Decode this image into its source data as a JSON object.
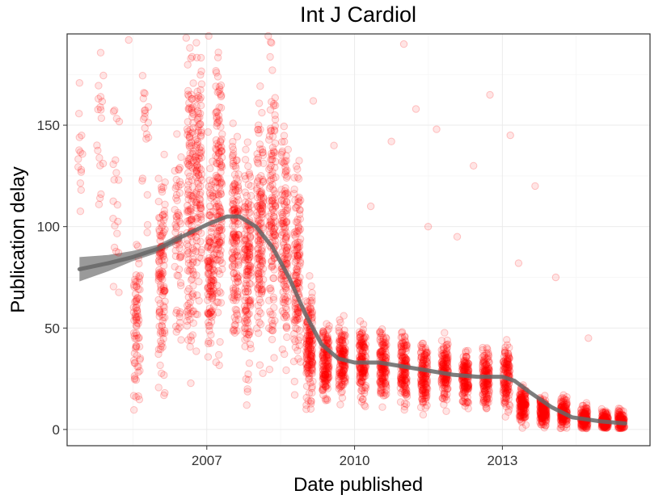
{
  "chart_data": {
    "type": "scatter",
    "title": "Int J Cardiol",
    "xlabel": "Date published",
    "ylabel": "Publication delay",
    "xlim": [
      "2004-03-01",
      "2016-01-01"
    ],
    "ylim": [
      -8,
      195
    ],
    "x_ticks": [
      {
        "date": "2007-01-01",
        "label": "2007"
      },
      {
        "date": "2010-01-01",
        "label": "2010"
      },
      {
        "date": "2013-01-01",
        "label": "2013"
      }
    ],
    "y_ticks": [
      {
        "value": 0,
        "label": "0"
      },
      {
        "value": 50,
        "label": "50"
      },
      {
        "value": 100,
        "label": "100"
      },
      {
        "value": 150,
        "label": "150"
      }
    ],
    "grid": true,
    "point_color": "#ff0000",
    "trend_color": "#666666",
    "band_color": "#888888",
    "point_clusters": [
      {
        "date": "2004-06-01",
        "center": 135,
        "spread": 22,
        "n": 14
      },
      {
        "date": "2004-11-01",
        "center": 140,
        "spread": 35,
        "n": 18
      },
      {
        "date": "2005-03-01",
        "center": 120,
        "spread": 55,
        "n": 20
      },
      {
        "date": "2005-08-01",
        "center": 50,
        "spread": 30,
        "n": 80
      },
      {
        "date": "2005-10-01",
        "center": 140,
        "spread": 45,
        "n": 20
      },
      {
        "date": "2006-02-01",
        "center": 75,
        "spread": 40,
        "n": 120
      },
      {
        "date": "2006-06-01",
        "center": 95,
        "spread": 45,
        "n": 60
      },
      {
        "date": "2006-09-01",
        "center": 110,
        "spread": 60,
        "n": 150
      },
      {
        "date": "2006-11-01",
        "center": 130,
        "spread": 55,
        "n": 120
      },
      {
        "date": "2007-02-01",
        "center": 85,
        "spread": 35,
        "n": 130
      },
      {
        "date": "2007-04-01",
        "center": 115,
        "spread": 55,
        "n": 150
      },
      {
        "date": "2007-08-01",
        "center": 95,
        "spread": 40,
        "n": 150
      },
      {
        "date": "2007-11-01",
        "center": 80,
        "spread": 45,
        "n": 160
      },
      {
        "date": "2008-02-01",
        "center": 100,
        "spread": 50,
        "n": 150
      },
      {
        "date": "2008-05-01",
        "center": 110,
        "spread": 55,
        "n": 140
      },
      {
        "date": "2008-08-01",
        "center": 95,
        "spread": 45,
        "n": 140
      },
      {
        "date": "2008-11-01",
        "center": 80,
        "spread": 40,
        "n": 140
      },
      {
        "date": "2009-02-01",
        "center": 40,
        "spread": 22,
        "n": 170
      },
      {
        "date": "2009-06-01",
        "center": 33,
        "spread": 14,
        "n": 160
      },
      {
        "date": "2009-10-01",
        "center": 35,
        "spread": 15,
        "n": 150
      },
      {
        "date": "2010-03-01",
        "center": 33,
        "spread": 15,
        "n": 150
      },
      {
        "date": "2010-08-01",
        "center": 32,
        "spread": 14,
        "n": 150
      },
      {
        "date": "2011-01-01",
        "center": 30,
        "spread": 13,
        "n": 150
      },
      {
        "date": "2011-06-01",
        "center": 28,
        "spread": 12,
        "n": 150
      },
      {
        "date": "2011-11-01",
        "center": 28,
        "spread": 12,
        "n": 150
      },
      {
        "date": "2012-04-01",
        "center": 26,
        "spread": 12,
        "n": 150
      },
      {
        "date": "2012-09-01",
        "center": 25,
        "spread": 12,
        "n": 150
      },
      {
        "date": "2013-02-01",
        "center": 27,
        "spread": 14,
        "n": 140
      },
      {
        "date": "2013-06-01",
        "center": 12,
        "spread": 7,
        "n": 150
      },
      {
        "date": "2013-11-01",
        "center": 9,
        "spread": 6,
        "n": 150
      },
      {
        "date": "2014-04-01",
        "center": 8,
        "spread": 6,
        "n": 150
      },
      {
        "date": "2014-09-01",
        "center": 5,
        "spread": 5,
        "n": 150
      },
      {
        "date": "2015-02-01",
        "center": 4,
        "spread": 4,
        "n": 140
      },
      {
        "date": "2015-06-01",
        "center": 4,
        "spread": 4,
        "n": 120
      }
    ],
    "outliers": [
      {
        "date": "2005-06-01",
        "y": 192
      },
      {
        "date": "2006-08-01",
        "y": 193
      },
      {
        "date": "2007-01-15",
        "y": 194
      },
      {
        "date": "2008-04-01",
        "y": 194
      },
      {
        "date": "2009-03-01",
        "y": 162
      },
      {
        "date": "2009-08-01",
        "y": 140
      },
      {
        "date": "2010-10-01",
        "y": 142
      },
      {
        "date": "2011-01-01",
        "y": 190
      },
      {
        "date": "2011-04-01",
        "y": 158
      },
      {
        "date": "2011-09-01",
        "y": 148
      },
      {
        "date": "2012-06-01",
        "y": 130
      },
      {
        "date": "2012-10-01",
        "y": 165
      },
      {
        "date": "2013-03-01",
        "y": 145
      },
      {
        "date": "2013-09-01",
        "y": 120
      },
      {
        "date": "2010-05-01",
        "y": 110
      },
      {
        "date": "2012-02-01",
        "y": 95
      },
      {
        "date": "2014-02-01",
        "y": 75
      },
      {
        "date": "2014-10-01",
        "y": 45
      },
      {
        "date": "2013-05-01",
        "y": 82
      },
      {
        "date": "2011-07-01",
        "y": 100
      }
    ],
    "trend": [
      {
        "date": "2004-06-01",
        "y": 79
      },
      {
        "date": "2005-01-01",
        "y": 82
      },
      {
        "date": "2005-07-01",
        "y": 85
      },
      {
        "date": "2006-01-01",
        "y": 89
      },
      {
        "date": "2006-07-01",
        "y": 95
      },
      {
        "date": "2007-01-01",
        "y": 101
      },
      {
        "date": "2007-06-01",
        "y": 105
      },
      {
        "date": "2007-09-01",
        "y": 105
      },
      {
        "date": "2008-01-01",
        "y": 100
      },
      {
        "date": "2008-05-01",
        "y": 90
      },
      {
        "date": "2008-09-01",
        "y": 75
      },
      {
        "date": "2009-01-01",
        "y": 57
      },
      {
        "date": "2009-05-01",
        "y": 42
      },
      {
        "date": "2009-09-01",
        "y": 35
      },
      {
        "date": "2010-01-01",
        "y": 33
      },
      {
        "date": "2010-07-01",
        "y": 33
      },
      {
        "date": "2011-01-01",
        "y": 31
      },
      {
        "date": "2011-07-01",
        "y": 29
      },
      {
        "date": "2012-01-01",
        "y": 27
      },
      {
        "date": "2012-07-01",
        "y": 26
      },
      {
        "date": "2013-01-01",
        "y": 26
      },
      {
        "date": "2013-04-01",
        "y": 24
      },
      {
        "date": "2013-08-01",
        "y": 18
      },
      {
        "date": "2014-01-01",
        "y": 11
      },
      {
        "date": "2014-06-01",
        "y": 6
      },
      {
        "date": "2015-01-01",
        "y": 4
      },
      {
        "date": "2015-07-01",
        "y": 3
      }
    ],
    "trend_band": [
      {
        "date": "2004-06-01",
        "low": 73,
        "high": 85
      },
      {
        "date": "2005-01-01",
        "low": 78,
        "high": 86
      },
      {
        "date": "2005-07-01",
        "low": 83,
        "high": 88
      },
      {
        "date": "2006-01-01",
        "low": 87,
        "high": 91
      },
      {
        "date": "2006-07-01",
        "low": 93,
        "high": 97
      }
    ]
  }
}
